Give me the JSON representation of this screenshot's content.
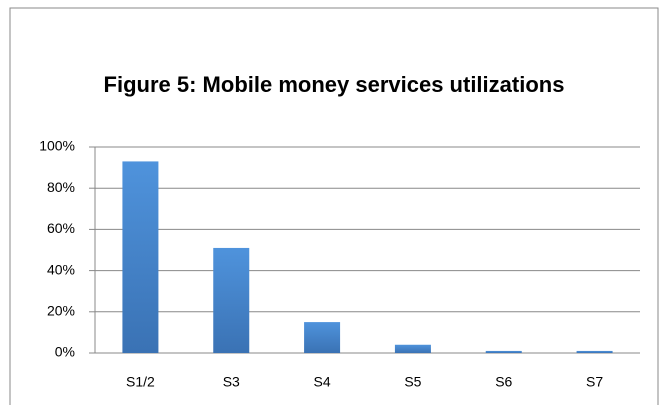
{
  "chart_data": {
    "type": "bar",
    "title": "Figure 5: Mobile money services utilizations",
    "categories": [
      "S1/2",
      "S3",
      "S4",
      "S5",
      "S6",
      "S7"
    ],
    "values": [
      93,
      51,
      15,
      4,
      1,
      1
    ],
    "color": "#4a86c8",
    "ylim": [
      0,
      100
    ],
    "yticks": [
      {
        "value": 0,
        "label": "0%"
      },
      {
        "value": 20,
        "label": "20%"
      },
      {
        "value": 40,
        "label": "40%"
      },
      {
        "value": 60,
        "label": "60%"
      },
      {
        "value": 80,
        "label": "80%"
      },
      {
        "value": 100,
        "label": "100%"
      }
    ],
    "grid": true
  }
}
